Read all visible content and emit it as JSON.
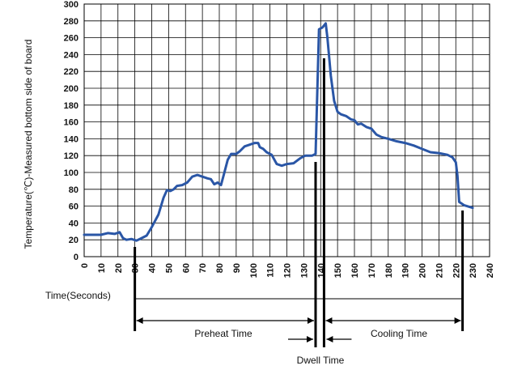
{
  "chart_data": {
    "type": "line",
    "ylabel": "Temperature(℃)-Measured bottom side of board",
    "xlabel": "Time(Seconds)",
    "xlim": [
      0,
      240
    ],
    "ylim": [
      0,
      300
    ],
    "x_ticks": [
      0,
      10,
      20,
      30,
      40,
      50,
      60,
      70,
      80,
      90,
      100,
      110,
      120,
      130,
      140,
      150,
      160,
      170,
      180,
      190,
      200,
      210,
      220,
      230,
      240
    ],
    "y_ticks": [
      0,
      20,
      40,
      60,
      80,
      100,
      120,
      140,
      160,
      180,
      200,
      220,
      240,
      260,
      280,
      300
    ],
    "grid": true,
    "series": [
      {
        "color": "#2a56a6",
        "points": [
          [
            0,
            26
          ],
          [
            5,
            26
          ],
          [
            10,
            26
          ],
          [
            14,
            28
          ],
          [
            18,
            27
          ],
          [
            21,
            29
          ],
          [
            23,
            22
          ],
          [
            25,
            20
          ],
          [
            28,
            21
          ],
          [
            31,
            19
          ],
          [
            34,
            22
          ],
          [
            37,
            25
          ],
          [
            40,
            35
          ],
          [
            44,
            50
          ],
          [
            47,
            70
          ],
          [
            49,
            79
          ],
          [
            51,
            78
          ],
          [
            53,
            80
          ],
          [
            55,
            84
          ],
          [
            58,
            85
          ],
          [
            61,
            88
          ],
          [
            64,
            95
          ],
          [
            67,
            97
          ],
          [
            70,
            95
          ],
          [
            73,
            93
          ],
          [
            75,
            92
          ],
          [
            77,
            86
          ],
          [
            79,
            88
          ],
          [
            81,
            85
          ],
          [
            83,
            100
          ],
          [
            85,
            115
          ],
          [
            87,
            122
          ],
          [
            90,
            122
          ],
          [
            92,
            125
          ],
          [
            95,
            131
          ],
          [
            98,
            133
          ],
          [
            101,
            135
          ],
          [
            103,
            135
          ],
          [
            104,
            130
          ],
          [
            106,
            128
          ],
          [
            108,
            124
          ],
          [
            111,
            121
          ],
          [
            114,
            110
          ],
          [
            117,
            108
          ],
          [
            120,
            110
          ],
          [
            124,
            111
          ],
          [
            128,
            117
          ],
          [
            131,
            120
          ],
          [
            135,
            120
          ],
          [
            137,
            122
          ],
          [
            139,
            270
          ],
          [
            141,
            272
          ],
          [
            143,
            277
          ],
          [
            144,
            260
          ],
          [
            146,
            215
          ],
          [
            148,
            185
          ],
          [
            150,
            172
          ],
          [
            152,
            169
          ],
          [
            155,
            167
          ],
          [
            158,
            163
          ],
          [
            160,
            162
          ],
          [
            162,
            157
          ],
          [
            164,
            158
          ],
          [
            167,
            154
          ],
          [
            170,
            152
          ],
          [
            173,
            145
          ],
          [
            176,
            142
          ],
          [
            180,
            140
          ],
          [
            185,
            137
          ],
          [
            190,
            135
          ],
          [
            195,
            132
          ],
          [
            200,
            128
          ],
          [
            205,
            124
          ],
          [
            210,
            123
          ],
          [
            215,
            121
          ],
          [
            218,
            118
          ],
          [
            220,
            112
          ],
          [
            221,
            96
          ],
          [
            222,
            65
          ],
          [
            225,
            61
          ],
          [
            230,
            58
          ]
        ]
      }
    ],
    "annotations": {
      "preheat_label": "Preheat Time",
      "dwell_label": "Dwell Time",
      "cooling_label": "Cooling Time",
      "preheat_range": [
        30,
        137
      ],
      "dwell_range": [
        137,
        142
      ],
      "cooling_range": [
        142,
        224
      ]
    }
  }
}
